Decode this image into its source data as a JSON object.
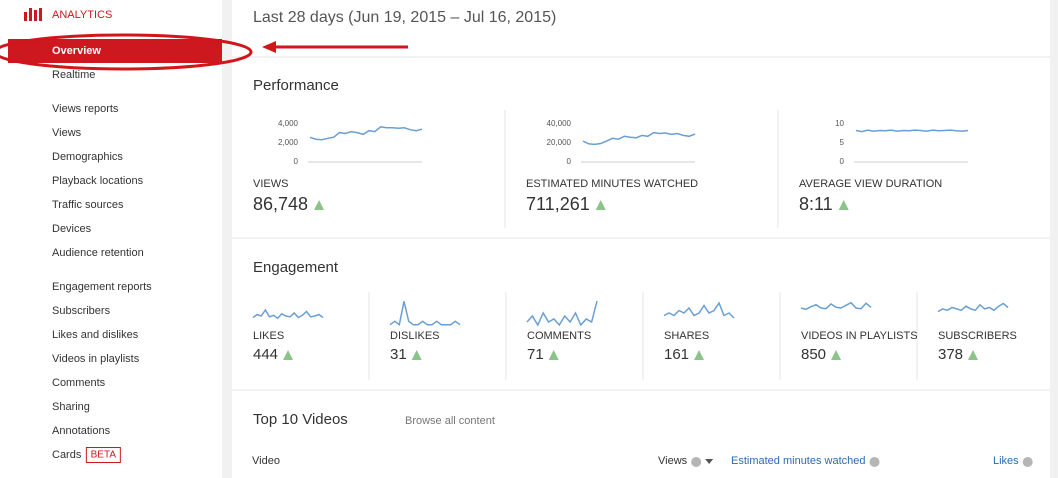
{
  "sidebar": {
    "title": "ANALYTICS",
    "active": "Overview",
    "realtime": "Realtime",
    "sections": [
      {
        "heading": "Views reports",
        "items": [
          "Views",
          "Demographics",
          "Playback locations",
          "Traffic sources",
          "Devices",
          "Audience retention"
        ]
      },
      {
        "heading": "Engagement reports",
        "items": [
          "Subscribers",
          "Likes and dislikes",
          "Videos in playlists",
          "Comments",
          "Sharing",
          "Annotations",
          "Cards"
        ]
      }
    ],
    "beta": "BETA"
  },
  "header": {
    "date_range": "Last 28 days (Jun 19, 2015 – Jul 16, 2015)"
  },
  "performance": {
    "title": "Performance",
    "cards": [
      {
        "label": "VIEWS",
        "value": "86,748",
        "ylim": [
          0,
          4000
        ],
        "yticks": [
          {
            "value": 4000,
            "label": "4,000"
          },
          {
            "value": 2000,
            "label": "2,000"
          },
          0
        ],
        "values": [
          2600,
          2400,
          2350,
          2500,
          2600,
          3100,
          3000,
          3200,
          3100,
          2900,
          3300,
          3200,
          3700,
          3600,
          3600,
          3550,
          3600,
          3400,
          3300,
          3450
        ]
      },
      {
        "label": "ESTIMATED MINUTES WATCHED",
        "value": "711,261",
        "ylim": [
          0,
          40000
        ],
        "yticks": [
          {
            "value": 40000,
            "label": "40,000"
          },
          {
            "value": 20000,
            "label": "20,000"
          },
          0
        ],
        "values": [
          22000,
          19000,
          18500,
          19500,
          22000,
          25000,
          24000,
          27000,
          26000,
          25500,
          28000,
          27000,
          31000,
          30000,
          30500,
          29000,
          30000,
          28000,
          27000,
          29500
        ]
      },
      {
        "label": "AVERAGE VIEW DURATION",
        "value": "8:11",
        "ylim": [
          0,
          10
        ],
        "yticks": [
          10,
          5,
          0
        ],
        "values": [
          8.3,
          8.0,
          8.4,
          8.1,
          8.3,
          8.2,
          8.4,
          8.1,
          8.3,
          8.2,
          8.4,
          8.3,
          8.1,
          8.4,
          8.2,
          8.3,
          8.4,
          8.2,
          8.1,
          8.3
        ]
      }
    ]
  },
  "engagement": {
    "title": "Engagement",
    "cards": [
      {
        "label": "LIKES",
        "value": "444",
        "ylim": [
          0,
          40
        ],
        "values": [
          14,
          18,
          16,
          24,
          15,
          17,
          13,
          19,
          16,
          15,
          20,
          14,
          17,
          22,
          15,
          16,
          18,
          14
        ]
      },
      {
        "label": "DISLIKES",
        "value": "31",
        "ylim": [
          0,
          9
        ],
        "values": [
          1,
          2,
          1,
          8,
          2,
          1,
          1,
          2,
          1,
          1,
          2,
          1,
          1,
          1,
          2,
          1
        ]
      },
      {
        "label": "COMMENTS",
        "value": "71",
        "ylim": [
          0,
          10
        ],
        "values": [
          2,
          4,
          1,
          5,
          2,
          3,
          1,
          4,
          2,
          5,
          1,
          3,
          2,
          9
        ]
      },
      {
        "label": "SHARES",
        "value": "161",
        "ylim": [
          0,
          12
        ],
        "values": [
          5,
          6,
          5,
          7,
          6,
          8,
          5,
          6,
          9,
          6,
          7,
          10,
          5,
          6,
          4
        ]
      },
      {
        "label": "VIDEOS IN PLAYLISTS",
        "value": "850",
        "ylim": [
          0,
          45
        ],
        "values": [
          30,
          28,
          32,
          35,
          30,
          29,
          36,
          31,
          30,
          34,
          38,
          30,
          29,
          37,
          31
        ]
      },
      {
        "label": "SUBSCRIBERS",
        "value": "378",
        "ylim": [
          0,
          22
        ],
        "values": [
          12,
          14,
          13,
          15,
          14,
          13,
          16,
          14,
          13,
          17,
          14,
          15,
          13,
          16,
          18,
          15
        ]
      }
    ]
  },
  "top_videos": {
    "title": "Top 10 Videos",
    "browse": "Browse all content",
    "columns": [
      "Video",
      "Views",
      "Estimated minutes watched",
      "Likes"
    ]
  }
}
